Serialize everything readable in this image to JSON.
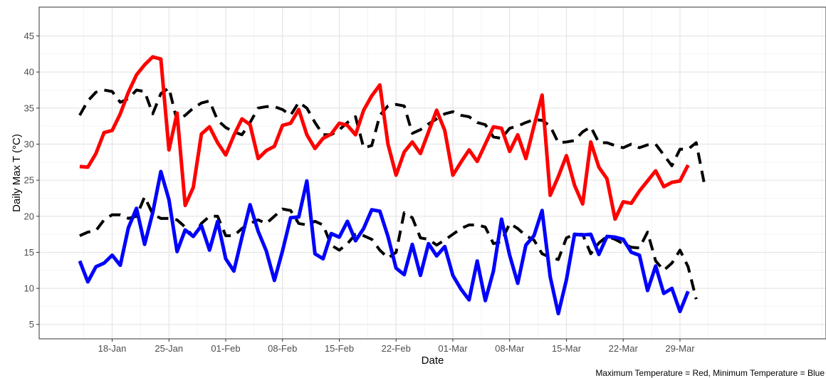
{
  "chart_data": {
    "type": "line",
    "xlabel": "Date",
    "ylabel": "Daily Max T (°C)",
    "caption": "Maximum Temperature = Red, Minimum Temperature = Blue",
    "ylim": [
      3,
      49
    ],
    "yticks": [
      5,
      10,
      15,
      20,
      25,
      30,
      35,
      40,
      45
    ],
    "x_start": "2000-01-14",
    "x_range": [
      -5,
      92
    ],
    "x_ticks": [
      {
        "label": "18-Jan",
        "x": 4
      },
      {
        "label": "25-Jan",
        "x": 11
      },
      {
        "label": "01-Feb",
        "x": 18
      },
      {
        "label": "08-Feb",
        "x": 25
      },
      {
        "label": "15-Feb",
        "x": 32
      },
      {
        "label": "22-Feb",
        "x": 39
      },
      {
        "label": "01-Mar",
        "x": 46
      },
      {
        "label": "08-Mar",
        "x": 53
      },
      {
        "label": "15-Mar",
        "x": 60
      },
      {
        "label": "22-Mar",
        "x": 67
      },
      {
        "label": "29-Mar",
        "x": 74
      }
    ],
    "grid": true,
    "series": [
      {
        "color": "#000000",
        "style": "dashed",
        "values": [
          34,
          36,
          37.2,
          37.5,
          37.3,
          35.8,
          36.3,
          37.5,
          37.3,
          34.2,
          37,
          37.8,
          33.2,
          34,
          35,
          35.7,
          36,
          33.3,
          32.3,
          31.7,
          31.3,
          33,
          35,
          35.2,
          35.2,
          34.8,
          34,
          35.8,
          35,
          33,
          31.3,
          31.3,
          32,
          33,
          33.8,
          29.5,
          29.8,
          34,
          35.3,
          35.5,
          35.3,
          31.5,
          32,
          32.8,
          33.5,
          34.2,
          34.5,
          34,
          33.8,
          33,
          32.7,
          31,
          30.8,
          32.2,
          32.5,
          33,
          33.4,
          33.3,
          32.5,
          30.2,
          30.3,
          30.5,
          31.7,
          32.4,
          30.2,
          30.2,
          29.8,
          29.5,
          30,
          29.5,
          29.9,
          30,
          28.5,
          27,
          29.3,
          29.3,
          30.2,
          24.5
        ]
      },
      {
        "color": "#000000",
        "style": "dashed",
        "values": [
          17.3,
          17.8,
          18,
          19.5,
          20.2,
          20.2,
          19.7,
          20,
          22.7,
          20.3,
          19.7,
          19.7,
          19.5,
          18.5,
          17.2,
          19,
          20,
          20,
          17.3,
          17.3,
          18.3,
          19,
          19.5,
          19,
          20,
          21,
          20.8,
          19,
          18.8,
          19.3,
          18.8,
          16,
          15.3,
          16.2,
          17.5,
          17.3,
          16.8,
          15.3,
          14.2,
          15,
          20.5,
          19.8,
          17,
          16.8,
          16,
          16.7,
          17.5,
          18.3,
          18.8,
          18.8,
          18.5,
          16.2,
          16.5,
          19,
          18.3,
          17.3,
          16.7,
          14.8,
          14.3,
          14,
          17,
          17.5,
          17.5,
          14.8,
          16.3,
          17.2,
          16.8,
          16.2,
          15.7,
          15.6,
          17.8,
          13.8,
          12.5,
          13.5,
          15.3,
          13,
          8.5
        ]
      },
      {
        "color": "#ff0000",
        "style": "solid",
        "values": [
          26.9,
          26.8,
          28.7,
          31.6,
          31.9,
          34.2,
          37.2,
          39.6,
          41,
          42.1,
          41.8,
          29.2,
          34.3,
          21.5,
          24,
          31.4,
          32.4,
          30.2,
          28.5,
          31.2,
          33.5,
          32.7,
          28,
          29.1,
          29.7,
          32.6,
          32.9,
          34.8,
          31.3,
          29.4,
          30.8,
          31.4,
          32.9,
          32.6,
          31.3,
          34.7,
          36.7,
          38.2,
          30,
          25.7,
          28.9,
          30.3,
          28.7,
          31.7,
          34.7,
          31.9,
          25.7,
          27.5,
          29.2,
          27.6,
          30,
          32.4,
          32.2,
          29,
          31.3,
          28,
          32.5,
          36.8,
          22.9,
          25.5,
          28.4,
          24.3,
          21.7,
          30.3,
          26.8,
          25.2,
          19.6,
          22,
          21.8,
          23.5,
          24.9,
          26.3,
          24.1,
          24.7,
          24.9,
          27.1
        ]
      },
      {
        "color": "#0000ff",
        "style": "solid",
        "values": [
          13.8,
          10.9,
          13,
          13.5,
          14.6,
          13.2,
          18.4,
          21.1,
          16.1,
          20.5,
          26.2,
          22.3,
          15.1,
          18.1,
          17.2,
          18.7,
          15.3,
          19.3,
          14.1,
          12.4,
          17.1,
          21.6,
          17.9,
          15.2,
          11.1,
          15.2,
          19.8,
          19.9,
          24.9,
          14.8,
          14.1,
          17.6,
          17.1,
          19.3,
          16.6,
          18.3,
          20.9,
          20.7,
          17.2,
          12.8,
          11.9,
          16.1,
          11.8,
          16.2,
          14.5,
          15.8,
          11.8,
          9.9,
          8.4,
          13.8,
          8.3,
          12.4,
          19.6,
          14.6,
          10.7,
          16,
          17.3,
          20.8,
          11.6,
          6.5,
          11.2,
          17.5,
          17.4,
          17.5,
          14.7,
          17.2,
          17.1,
          16.8,
          15,
          14.6,
          9.7,
          13.1,
          9.3,
          10,
          6.8,
          9.6
        ]
      }
    ]
  }
}
